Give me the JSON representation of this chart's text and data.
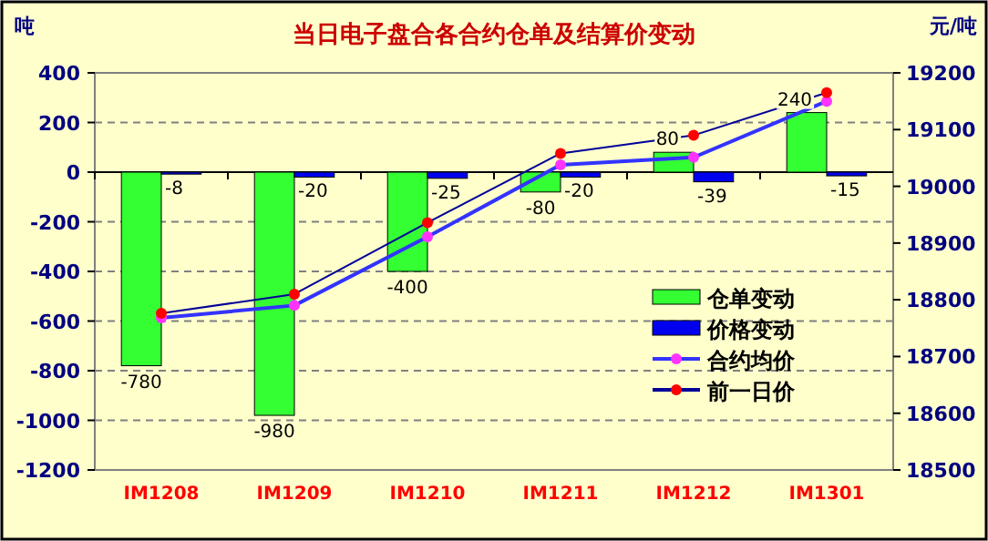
{
  "chart_data": {
    "type": "bar",
    "title": "当日电子盘合各合约仓单及结算价变动",
    "ylabel": "吨",
    "y2label": "元/吨",
    "categories": [
      "IM1208",
      "IM1209",
      "IM1210",
      "IM1211",
      "IM1212",
      "IM1301"
    ],
    "series": [
      {
        "name": "仓单变动",
        "color": "#33ff33",
        "values": [
          -780,
          -980,
          -400,
          -80,
          80,
          240
        ],
        "value_labels": [
          "-780",
          "-980",
          "-400",
          "-80",
          "80",
          "240"
        ]
      },
      {
        "name": "价格变动",
        "color": "#0000ee",
        "values": [
          -8,
          -20,
          -25,
          -20,
          -39,
          -15
        ],
        "value_labels": [
          "-8",
          "-20",
          "-25",
          "-20",
          "-39",
          "-15"
        ]
      },
      {
        "name": "合约均价",
        "type": "line",
        "axis": "y2",
        "color": "#3333ff",
        "marker": "circle",
        "values": [
          18768,
          18790,
          18911,
          19038,
          19051,
          19150
        ]
      },
      {
        "name": "前一日价",
        "type": "line",
        "axis": "y2",
        "color": "#000099",
        "marker": "circle",
        "values": [
          18776,
          18810,
          18936,
          19058,
          19090,
          19165
        ]
      }
    ],
    "ylim": [
      -1200,
      400
    ],
    "yticks": [
      -1200,
      -1000,
      -800,
      -600,
      -400,
      -200,
      0,
      200,
      400
    ],
    "y2lim": [
      18500,
      19200
    ],
    "y2ticks": [
      18500,
      18600,
      18700,
      18800,
      18900,
      19000,
      19100,
      19200
    ],
    "grid": "y",
    "legend": "right"
  }
}
